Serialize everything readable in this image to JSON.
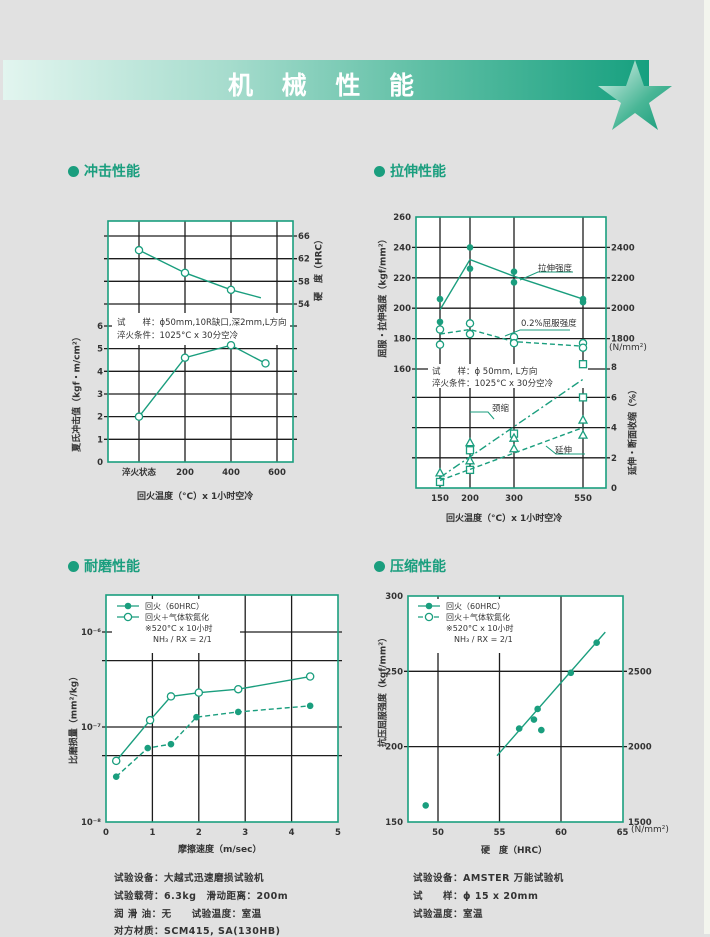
{
  "header": {
    "title": "机 械 性 能",
    "icon": "star-icon"
  },
  "colors": {
    "accent": "#1a9e7e",
    "grid": "#1d1d1d",
    "background": "#e1e1e1"
  },
  "sections": [
    "冲击性能",
    "拉伸性能",
    "耐磨性能",
    "压缩性能"
  ],
  "chart_data": [
    {
      "type": "line",
      "title": "冲击性能",
      "xlabel": "回火温度（°C）x 1小时空冷",
      "ylabel": "夏氏冲击值（kgf・m/cm²）",
      "y2label": "硬　度（HRC）",
      "x_ticks": [
        {
          "value": 0,
          "label": "淬火状态"
        },
        {
          "value": 200,
          "label": "200"
        },
        {
          "value": 400,
          "label": "400"
        },
        {
          "value": 600,
          "label": "600"
        }
      ],
      "y_ticks": [
        {
          "value": 0,
          "label": "0"
        },
        {
          "value": 1,
          "label": "1"
        },
        {
          "value": 2,
          "label": "2"
        },
        {
          "value": 3,
          "label": "3"
        },
        {
          "value": 4,
          "label": "4"
        },
        {
          "value": 5,
          "label": "5"
        },
        {
          "value": 6,
          "label": "6"
        }
      ],
      "y2_ticks": [
        {
          "value": 54,
          "label": "54"
        },
        {
          "value": 58,
          "label": "58"
        },
        {
          "value": 62,
          "label": "62"
        },
        {
          "value": 66,
          "label": "66"
        }
      ],
      "ylim": [
        0,
        6
      ],
      "y2lim": [
        54,
        66
      ],
      "note": [
        "试　　样：ϕ50mm,10R缺口,深2mm,L方向",
        "淬火条件：1025°C x 30分空冷"
      ],
      "series": [
        {
          "axis": "y2",
          "marker": "open-circle",
          "style": "solid",
          "points": [
            [
              0,
              63.5
            ],
            [
              200,
              59.5
            ],
            [
              400,
              56.5
            ]
          ],
          "line": [
            [
              0,
              63.5
            ],
            [
              200,
              59.5
            ],
            [
              400,
              56.5
            ],
            [
              530,
              55.1
            ]
          ]
        },
        {
          "axis": "y",
          "marker": "open-circle",
          "style": "solid",
          "points": [
            [
              0,
              2.0
            ],
            [
              200,
              4.6
            ],
            [
              400,
              5.15
            ],
            [
              550,
              4.35
            ]
          ],
          "line": [
            [
              0,
              2.0
            ],
            [
              200,
              4.6
            ],
            [
              400,
              5.15
            ],
            [
              550,
              4.35
            ]
          ]
        }
      ]
    },
    {
      "type": "line",
      "title": "拉伸性能",
      "xlabel": "回火温度（°C）x 1小时空冷",
      "ylabel": "屈服・拉伸强度（kgf/mm²）",
      "y3label": "延伸・断面收缩（%）",
      "y2unit": "(N/mm²)",
      "x_ticks": [
        {
          "value": 150,
          "label": "150"
        },
        {
          "value": 200,
          "label": "200"
        },
        {
          "value": 300,
          "label": "300"
        },
        {
          "value": 550,
          "label": "550"
        }
      ],
      "y_ticks": [
        {
          "value": 160,
          "label": "160"
        },
        {
          "value": 180,
          "label": "180"
        },
        {
          "value": 200,
          "label": "200"
        },
        {
          "value": 220,
          "label": "220"
        },
        {
          "value": 240,
          "label": "240"
        },
        {
          "value": 260,
          "label": "260"
        }
      ],
      "y2_ticks": [
        {
          "value": 1800,
          "label": "1800"
        },
        {
          "value": 2000,
          "label": "2000"
        },
        {
          "value": 2200,
          "label": "2200"
        },
        {
          "value": 2400,
          "label": "2400"
        }
      ],
      "y3_ticks": [
        {
          "value": 0,
          "label": "0"
        },
        {
          "value": 2,
          "label": "2"
        },
        {
          "value": 4,
          "label": "4"
        },
        {
          "value": 6,
          "label": "6"
        },
        {
          "value": 8,
          "label": "8"
        }
      ],
      "ylim": [
        160,
        260
      ],
      "y3lim": [
        0,
        8
      ],
      "note": [
        "试　　样：ϕ 50mm, L方向",
        "淬火条件：1025°C x 30分空冷"
      ],
      "series": [
        {
          "name": "拉伸强度",
          "axis": "y",
          "marker": "filled-circle",
          "style": "solid",
          "points": [
            [
              150,
              206
            ],
            [
              150,
              191
            ],
            [
              200,
              240
            ],
            [
              200,
              226
            ],
            [
              300,
              224
            ],
            [
              300,
              217
            ],
            [
              550,
              206
            ],
            [
              550,
              204
            ]
          ],
          "line": [
            [
              150,
              199
            ],
            [
              200,
              232
            ],
            [
              300,
              221
            ],
            [
              550,
              206
            ]
          ]
        },
        {
          "name": "0.2%屈服强度",
          "axis": "y",
          "marker": "open-circle",
          "style": "dashed",
          "points": [
            [
              150,
              186
            ],
            [
              150,
              176
            ],
            [
              200,
              190
            ],
            [
              200,
              183
            ],
            [
              300,
              181
            ],
            [
              300,
              177
            ],
            [
              550,
              177
            ],
            [
              550,
              174
            ]
          ],
          "line": [
            [
              150,
              183
            ],
            [
              200,
              186
            ],
            [
              300,
              178
            ],
            [
              550,
              175
            ]
          ]
        },
        {
          "name": "颈缩",
          "axis": "y3",
          "marker": "open-square",
          "style": "dashdot",
          "points": [
            [
              150,
              0.4
            ],
            [
              200,
              2.5
            ],
            [
              200,
              1.2
            ],
            [
              300,
              3.6
            ],
            [
              550,
              8.2
            ],
            [
              550,
              6.0
            ]
          ],
          "line": [
            [
              150,
              0.7
            ],
            [
              550,
              7.2
            ]
          ]
        },
        {
          "name": "延伸",
          "axis": "y3",
          "marker": "open-triangle",
          "style": "dashed",
          "points": [
            [
              150,
              1.0
            ],
            [
              200,
              3.0
            ],
            [
              200,
              1.8
            ],
            [
              300,
              2.6
            ],
            [
              300,
              3.3
            ],
            [
              550,
              4.5
            ],
            [
              550,
              3.5
            ]
          ],
          "line": [
            [
              150,
              0.5
            ],
            [
              550,
              4.0
            ]
          ]
        }
      ]
    },
    {
      "type": "line",
      "title": "耐磨性能",
      "xlabel": "摩擦速度（m/sec）",
      "ylabel": "比磨损量（mm²/kg）",
      "yscale": "log",
      "x_ticks": [
        {
          "value": 0,
          "label": "0"
        },
        {
          "value": 1,
          "label": "1"
        },
        {
          "value": 2,
          "label": "2"
        },
        {
          "value": 3,
          "label": "3"
        },
        {
          "value": 4,
          "label": "4"
        },
        {
          "value": 5,
          "label": "5"
        }
      ],
      "y_ticks": [
        {
          "value": 1e-08,
          "label": "10⁻⁸"
        },
        {
          "value": 1e-07,
          "label": "10⁻⁷"
        },
        {
          "value": 1e-06,
          "label": "10⁻⁶"
        }
      ],
      "xlim": [
        0,
        5
      ],
      "legend": {
        "entries": [
          {
            "label": "回火（60HRC）",
            "marker": "filled-circle",
            "style": "solid"
          },
          {
            "label": "回火＋气体软氮化",
            "marker": "open-circle",
            "style": "solid"
          }
        ],
        "notes": [
          "※520°C x 10小时",
          "NH₃ / RX = 2/1"
        ],
        "position": "top-left"
      },
      "series": [
        {
          "marker": "open-circle",
          "style": "solid",
          "points": [
            [
              0.22,
              4.4e-08
            ],
            [
              0.95,
              1.18e-07
            ],
            [
              1.4,
              2.1e-07
            ],
            [
              2.0,
              2.3e-07
            ],
            [
              2.85,
              2.5e-07
            ],
            [
              4.4,
              3.4e-07
            ]
          ]
        },
        {
          "marker": "filled-circle",
          "style": "dashed",
          "points": [
            [
              0.22,
              3e-08
            ],
            [
              0.9,
              6e-08
            ],
            [
              1.4,
              6.6e-08
            ],
            [
              1.95,
              1.27e-07
            ],
            [
              2.85,
              1.44e-07
            ],
            [
              4.4,
              1.67e-07
            ]
          ]
        }
      ],
      "note": [
        "试验设备：大越式迅速磨损试验机",
        "试验载荷：6.3kg　滑动距离：200m",
        "润 滑 油：无　　试验温度：室温",
        "对方材质：SCM415, SA(130HB)"
      ]
    },
    {
      "type": "scatter",
      "title": "压缩性能",
      "xlabel": "硬　度（HRC）",
      "ylabel": "抗压屈服强度（kgf/mm²）",
      "y2unit": "(N/mm²)",
      "x_ticks": [
        {
          "value": 50,
          "label": "50"
        },
        {
          "value": 55,
          "label": "55"
        },
        {
          "value": 60,
          "label": "60"
        },
        {
          "value": 65,
          "label": "65"
        }
      ],
      "y_ticks": [
        {
          "value": 150,
          "label": "150"
        },
        {
          "value": 200,
          "label": "200"
        },
        {
          "value": 250,
          "label": "250"
        },
        {
          "value": 300,
          "label": "300"
        }
      ],
      "y2_ticks": [
        {
          "value": 1500,
          "label": "1500"
        },
        {
          "value": 2000,
          "label": "2000"
        },
        {
          "value": 2500,
          "label": "2500"
        }
      ],
      "ylim": [
        150,
        300
      ],
      "legend": {
        "entries": [
          {
            "label": "回火（60HRC）",
            "marker": "filled-circle",
            "style": "solid"
          },
          {
            "label": "回火＋气体软氮化",
            "marker": "open-circle",
            "style": "dashed"
          }
        ],
        "notes": [
          "※520°C x 10小时",
          "NH₃ / RX = 2/1"
        ],
        "position": "top-left"
      },
      "series": [
        {
          "marker": "filled-circle",
          "style": "none",
          "points": [
            [
              49.0,
              161
            ],
            [
              56.6,
              212
            ],
            [
              57.8,
              218
            ],
            [
              58.1,
              225
            ],
            [
              58.4,
              211
            ],
            [
              60.8,
              249
            ],
            [
              62.9,
              269
            ]
          ],
          "line": [
            [
              54.8,
              194
            ],
            [
              63.6,
              276
            ]
          ]
        }
      ],
      "note": [
        "试验设备：AMSTER 万能试验机",
        "试　　样：ϕ 15 x 20mm",
        "试验温度：室温"
      ]
    }
  ]
}
